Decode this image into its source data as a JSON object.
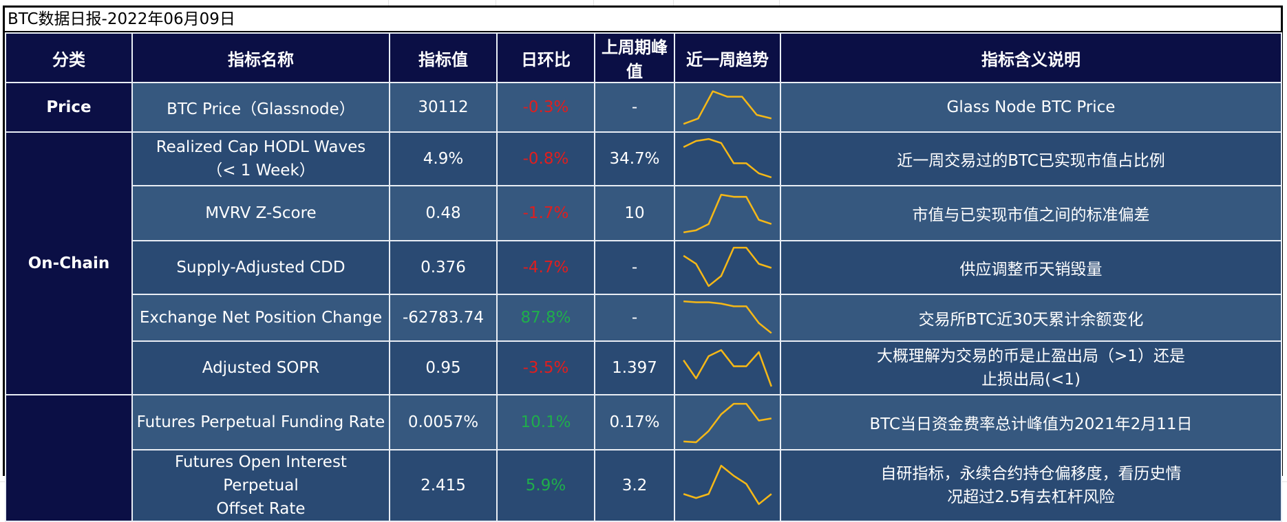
{
  "title": "BTC数据日报-2022年06月09日",
  "headers": [
    "分类",
    "指标名称",
    "指标值",
    "日环比",
    "上周期峰值",
    "近一周趋势",
    "指标含义说明"
  ],
  "categories": {
    "price": "Price",
    "onchain": "On-Chain",
    "derivatives": ""
  },
  "colors": {
    "header_bg": "#0b0f45",
    "row_light": "#36587f",
    "row_dark": "#2a4a73",
    "negative": "#e01e1e",
    "positive": "#1fae4b",
    "sparkline": "#f5b817"
  },
  "rows": [
    {
      "name": "BTC Price（Glassnode）",
      "value": "30112",
      "change": "-0.3%",
      "change_sign": "neg",
      "peak": "-",
      "trend": [
        0.05,
        0.2,
        0.95,
        0.8,
        0.8,
        0.3,
        0.2
      ],
      "desc": "Glass Node BTC Price"
    },
    {
      "name": "Realized Cap HODL Waves (< 1 Week)",
      "name_lines": [
        "Realized Cap HODL Waves",
        "（< 1 Week）"
      ],
      "value": "4.9%",
      "change": "-0.8%",
      "change_sign": "neg",
      "peak": "34.7%",
      "trend": [
        0.8,
        0.95,
        1.0,
        0.9,
        0.4,
        0.4,
        0.15,
        0.05
      ],
      "desc": "近一周交易过的BTC已实现市值占比例"
    },
    {
      "name": "MVRV Z-Score",
      "value": "0.48",
      "change": "-1.7%",
      "change_sign": "neg",
      "peak": "10",
      "trend": [
        0.05,
        0.1,
        0.25,
        0.95,
        0.9,
        0.9,
        0.35,
        0.25
      ],
      "desc": "市值与已实现市值之间的标准偏差"
    },
    {
      "name": "Supply-Adjusted CDD",
      "value": "0.376",
      "change": "-4.7%",
      "change_sign": "neg",
      "peak": "-",
      "trend": [
        0.8,
        0.6,
        0.05,
        0.3,
        1.0,
        1.0,
        0.6,
        0.5
      ],
      "desc": "供应调整币天销毁量"
    },
    {
      "name": "Exchange Net Position Change",
      "value": "-62783.74",
      "change": "87.8%",
      "change_sign": "pos",
      "peak": "-",
      "trend": [
        1.0,
        0.97,
        0.97,
        0.93,
        0.85,
        0.85,
        0.35,
        0.05
      ],
      "desc": "交易所BTC近30天累计余额变化"
    },
    {
      "name": "Adjusted SOPR",
      "value": "0.95",
      "change": "-3.5%",
      "change_sign": "neg",
      "peak": "1.397",
      "trend": [
        0.7,
        0.25,
        0.8,
        0.95,
        0.55,
        0.55,
        0.9,
        0.05
      ],
      "desc": "大概理解为交易的币是止盈出局（>1）还是止损出局(<1)",
      "desc_lines": [
        "大概理解为交易的币是止盈出局（>1）还是",
        "止损出局(<1)"
      ]
    },
    {
      "name": "Futures Perpetual Funding Rate",
      "value": "0.0057%",
      "change": "10.1%",
      "change_sign": "pos",
      "peak": "0.17%",
      "trend": [
        0.05,
        0.03,
        0.3,
        0.7,
        0.95,
        0.95,
        0.55,
        0.6
      ],
      "desc": "BTC当日资金费率总计峰值为2021年2月11日"
    },
    {
      "name": "Futures Open Interest Perpetual Offset Rate",
      "name_lines": [
        "Futures Open Interest Perpetual",
        "Offset Rate"
      ],
      "value": "2.415",
      "change": "5.9%",
      "change_sign": "pos",
      "peak": "3.2",
      "trend": [
        0.3,
        0.2,
        0.3,
        1.0,
        0.75,
        0.55,
        0.05,
        0.3
      ],
      "desc": "自研指标，永续合约持仓偏移度，看历史情况超过2.5有去杠杆风险",
      "desc_lines": [
        "自研指标，永续合约持仓偏移度，看历史情",
        "况超过2.5有去杠杆风险"
      ]
    }
  ]
}
